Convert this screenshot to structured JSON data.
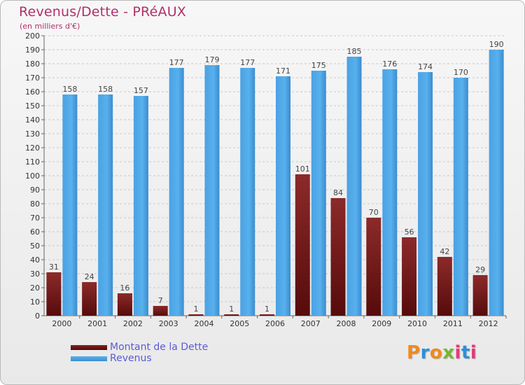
{
  "title": "Revenus/Dette - PRéAUX",
  "subtitle": "(en milliers d'€)",
  "legend": {
    "debt_label": "Montant de la Dette",
    "revenue_label": "Revenus"
  },
  "logo": {
    "text": "Proxiti"
  },
  "colors": {
    "debt_top": "#8c2a2a",
    "debt_bottom": "#560b0b",
    "revenue": "#4aa2e4",
    "revenue_dark": "#3a8cd0",
    "title": "#b0306a",
    "legend_text": "#5a5ad8"
  },
  "chart_data": {
    "type": "bar",
    "title": "Revenus/Dette - PRéAUX",
    "ylabel": "(en milliers d'€)",
    "xlabel": "",
    "categories": [
      "2000",
      "2001",
      "2002",
      "2003",
      "2004",
      "2005",
      "2006",
      "2007",
      "2008",
      "2009",
      "2010",
      "2011",
      "2012"
    ],
    "series": [
      {
        "name": "Montant de la Dette",
        "values": [
          31,
          24,
          16,
          7,
          1,
          1,
          1,
          101,
          84,
          70,
          56,
          42,
          29
        ]
      },
      {
        "name": "Revenus",
        "values": [
          158,
          158,
          157,
          177,
          179,
          177,
          171,
          175,
          185,
          176,
          174,
          170,
          190
        ]
      }
    ],
    "ylim": [
      0,
      200
    ],
    "ytick_step": 10,
    "grid": true,
    "legend_position": "bottom-left"
  }
}
